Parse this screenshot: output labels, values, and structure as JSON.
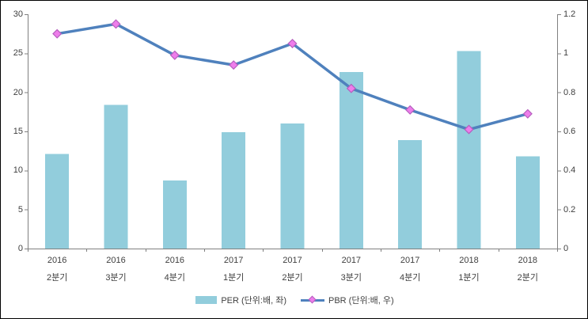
{
  "chart_data": {
    "type": "combo",
    "categories": [
      {
        "line1": "2016",
        "line2": "2분기"
      },
      {
        "line1": "2016",
        "line2": "3분기"
      },
      {
        "line1": "2016",
        "line2": "4분기"
      },
      {
        "line1": "2017",
        "line2": "1분기"
      },
      {
        "line1": "2017",
        "line2": "2분기"
      },
      {
        "line1": "2017",
        "line2": "3분기"
      },
      {
        "line1": "2017",
        "line2": "4분기"
      },
      {
        "line1": "2018",
        "line2": "1분기"
      },
      {
        "line1": "2018",
        "line2": "2분기"
      }
    ],
    "series": [
      {
        "name": "PER (단위:배, 좌)",
        "type": "bar",
        "axis": "left",
        "color": "#92CDDC",
        "values": [
          12.1,
          18.4,
          8.7,
          14.9,
          16.0,
          22.6,
          13.9,
          25.3,
          11.8
        ]
      },
      {
        "name": "PBR (단위:배, 우)",
        "type": "line",
        "axis": "right",
        "color": "#4F81BD",
        "marker": "diamond",
        "marker_fill": "#EE7DEB",
        "marker_border": "#B55FBE",
        "values": [
          1.1,
          1.15,
          0.99,
          0.94,
          1.05,
          0.82,
          0.71,
          0.61,
          0.69
        ]
      }
    ],
    "left_axis": {
      "min": 0,
      "max": 30,
      "ticks": [
        "30",
        "25",
        "20",
        "15",
        "10",
        "5",
        "0"
      ]
    },
    "right_axis": {
      "min": 0,
      "max": 1.2,
      "ticks": [
        "1.2",
        "1",
        "0.8",
        "0.6",
        "0.4",
        "0.2",
        "0"
      ]
    },
    "grid": false,
    "legend_position": "bottom"
  },
  "colors": {
    "axis": "#808080",
    "text": "#404040",
    "background": "#FFFFFF",
    "frame_border": "#000000"
  }
}
